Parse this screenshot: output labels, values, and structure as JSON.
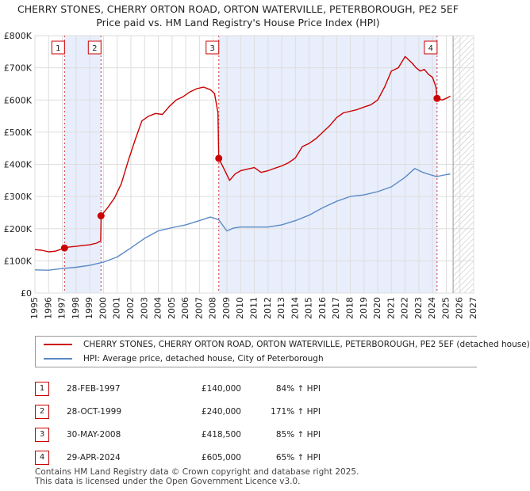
{
  "header": {
    "title_line1": "CHERRY STONES, CHERRY ORTON ROAD, ORTON WATERVILLE, PETERBOROUGH, PE2 5EF",
    "title_line2": "Price paid vs. HM Land Registry's House Price Index (HPI)"
  },
  "chart_data": {
    "type": "line",
    "title": "Price paid vs. HM Land Registry's House Price Index (HPI)",
    "xlabel": "",
    "ylabel": "",
    "xlim": [
      1995,
      2027
    ],
    "ylim": [
      0,
      800000
    ],
    "y_ticks": [
      {
        "value": 0,
        "label": "£0"
      },
      {
        "value": 100000,
        "label": "£100K"
      },
      {
        "value": 200000,
        "label": "£200K"
      },
      {
        "value": 300000,
        "label": "£300K"
      },
      {
        "value": 400000,
        "label": "£400K"
      },
      {
        "value": 500000,
        "label": "£500K"
      },
      {
        "value": 600000,
        "label": "£600K"
      },
      {
        "value": 700000,
        "label": "£700K"
      },
      {
        "value": 800000,
        "label": "£800K"
      }
    ],
    "x_ticks": [
      "1995",
      "1996",
      "1997",
      "1998",
      "1999",
      "2000",
      "2001",
      "2002",
      "2003",
      "2004",
      "2005",
      "2006",
      "2007",
      "2008",
      "2009",
      "2010",
      "2011",
      "2012",
      "2013",
      "2014",
      "2015",
      "2016",
      "2017",
      "2018",
      "2019",
      "2020",
      "2021",
      "2022",
      "2023",
      "2024",
      "2025",
      "2026",
      "2027"
    ],
    "shaded_periods": [
      [
        1997.16,
        1999.82
      ],
      [
        2008.41,
        2024.33
      ]
    ],
    "hatch_from": 2025.5,
    "series": [
      {
        "name": "CHERRY STONES, CHERRY ORTON ROAD, ORTON WATERVILLE, PETERBOROUGH, PE2 5EF (detached house)",
        "color": "#cc0000",
        "x": [
          1995.0,
          1995.5,
          1996.0,
          1996.5,
          1997.16,
          1997.5,
          1998.0,
          1998.5,
          1999.0,
          1999.5,
          1999.8,
          1999.83,
          2000.3,
          2000.8,
          2001.3,
          2001.8,
          2002.3,
          2002.8,
          2003.3,
          2003.8,
          2004.3,
          2004.8,
          2005.3,
          2005.8,
          2006.3,
          2006.8,
          2007.3,
          2007.8,
          2008.1,
          2008.35,
          2008.41,
          2008.8,
          2009.2,
          2009.6,
          2010.0,
          2010.5,
          2011.0,
          2011.5,
          2012.0,
          2012.5,
          2013.0,
          2013.5,
          2014.0,
          2014.5,
          2015.0,
          2015.5,
          2016.0,
          2016.5,
          2017.0,
          2017.5,
          2018.0,
          2018.5,
          2019.0,
          2019.5,
          2020.0,
          2020.5,
          2021.0,
          2021.5,
          2022.0,
          2022.5,
          2022.8,
          2023.1,
          2023.4,
          2023.7,
          2024.0,
          2024.25,
          2024.33,
          2024.7,
          2025.0,
          2025.3
        ],
        "values": [
          135000,
          133000,
          128000,
          130000,
          140000,
          143000,
          145000,
          148000,
          150000,
          155000,
          162000,
          240000,
          265000,
          295000,
          340000,
          410000,
          475000,
          535000,
          550000,
          558000,
          555000,
          580000,
          600000,
          610000,
          625000,
          635000,
          640000,
          632000,
          620000,
          560000,
          418500,
          385000,
          350000,
          370000,
          380000,
          385000,
          390000,
          375000,
          380000,
          388000,
          395000,
          405000,
          420000,
          455000,
          465000,
          480000,
          500000,
          520000,
          545000,
          560000,
          565000,
          570000,
          578000,
          585000,
          600000,
          640000,
          690000,
          700000,
          735000,
          715000,
          700000,
          690000,
          695000,
          680000,
          670000,
          640000,
          605000,
          600000,
          605000,
          612000
        ]
      },
      {
        "name": "HPI: Average price, detached house, City of Peterborough",
        "color": "#5b8ac6",
        "x": [
          1995.0,
          1996.0,
          1997.0,
          1998.0,
          1999.0,
          2000.0,
          2001.0,
          2002.0,
          2003.0,
          2004.0,
          2005.0,
          2006.0,
          2007.0,
          2007.8,
          2008.4,
          2009.0,
          2009.5,
          2010.0,
          2011.0,
          2012.0,
          2013.0,
          2014.0,
          2015.0,
          2016.0,
          2017.0,
          2018.0,
          2019.0,
          2020.0,
          2021.0,
          2022.0,
          2022.7,
          2023.3,
          2023.8,
          2024.3,
          2025.0,
          2025.3
        ],
        "values": [
          72000,
          71000,
          76000,
          80000,
          86000,
          96000,
          112000,
          140000,
          170000,
          193000,
          203000,
          212000,
          225000,
          236000,
          228000,
          193000,
          202000,
          205000,
          205000,
          205000,
          212000,
          225000,
          242000,
          265000,
          285000,
          300000,
          305000,
          315000,
          330000,
          360000,
          387000,
          375000,
          368000,
          362000,
          368000,
          370000
        ]
      }
    ],
    "markers": [
      {
        "label": "1",
        "x": 1997.16,
        "y": 140000
      },
      {
        "label": "2",
        "x": 1999.82,
        "y": 240000
      },
      {
        "label": "3",
        "x": 2008.41,
        "y": 418500
      },
      {
        "label": "4",
        "x": 2024.33,
        "y": 605000
      }
    ],
    "legend_position": "below"
  },
  "legend": {
    "red_label": "CHERRY STONES, CHERRY ORTON ROAD, ORTON WATERVILLE, PETERBOROUGH, PE2 5EF (detached house)",
    "blue_label": "HPI: Average price, detached house, City of Peterborough",
    "red_color": "#cc0000",
    "blue_color": "#5b8ac6"
  },
  "sales": [
    {
      "num": "1",
      "date": "28-FEB-1997",
      "price": "£140,000",
      "hpi": "84% ↑ HPI"
    },
    {
      "num": "2",
      "date": "28-OCT-1999",
      "price": "£240,000",
      "hpi": "171% ↑ HPI"
    },
    {
      "num": "3",
      "date": "30-MAY-2008",
      "price": "£418,500",
      "hpi": "85% ↑ HPI"
    },
    {
      "num": "4",
      "date": "29-APR-2024",
      "price": "£605,000",
      "hpi": "65% ↑ HPI"
    }
  ],
  "footer": {
    "line1": "Contains HM Land Registry data © Crown copyright and database right 2025.",
    "line2": "This data is licensed under the Open Government Licence v3.0."
  }
}
